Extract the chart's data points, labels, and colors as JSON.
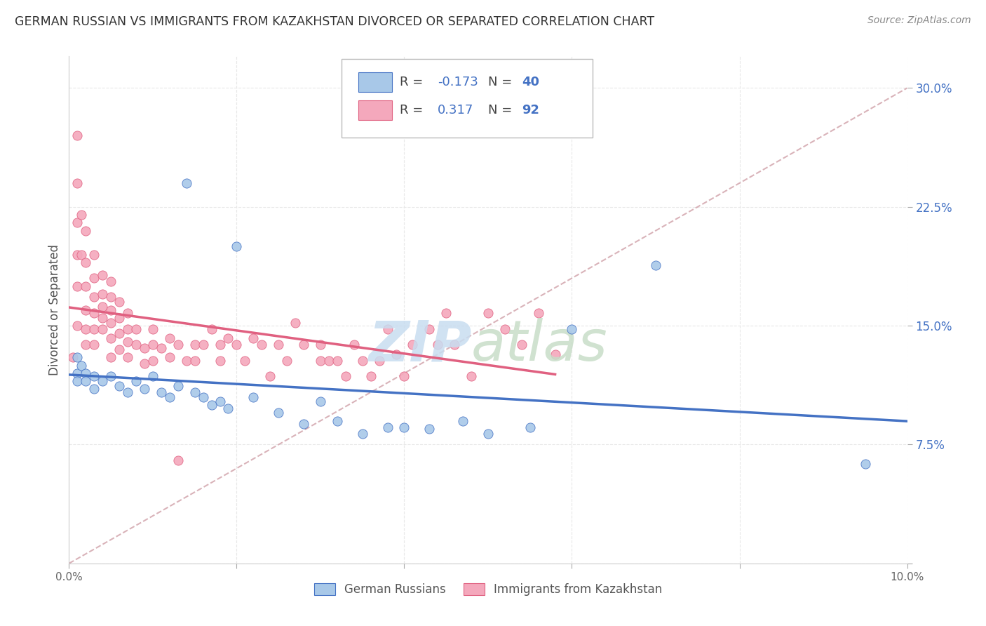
{
  "title": "GERMAN RUSSIAN VS IMMIGRANTS FROM KAZAKHSTAN DIVORCED OR SEPARATED CORRELATION CHART",
  "source": "Source: ZipAtlas.com",
  "ylabel": "Divorced or Separated",
  "xlim": [
    0.0,
    0.1
  ],
  "ylim": [
    0.0,
    0.32
  ],
  "xticks": [
    0.0,
    0.02,
    0.04,
    0.06,
    0.08,
    0.1
  ],
  "xtick_labels": [
    "0.0%",
    "",
    "",
    "",
    "",
    "10.0%"
  ],
  "yticks": [
    0.0,
    0.075,
    0.15,
    0.225,
    0.3
  ],
  "ytick_labels_right": [
    "",
    "7.5%",
    "15.0%",
    "22.5%",
    "30.0%"
  ],
  "blue_R": -0.173,
  "blue_N": 40,
  "pink_R": 0.317,
  "pink_N": 92,
  "blue_color": "#a8c8e8",
  "pink_color": "#f4a8bc",
  "blue_line_color": "#4472c4",
  "pink_line_color": "#e06080",
  "dashed_line_color": "#d0a0a8",
  "grid_color": "#e8e8e8",
  "blue_points_x": [
    0.001,
    0.001,
    0.001,
    0.0015,
    0.002,
    0.002,
    0.003,
    0.003,
    0.004,
    0.005,
    0.006,
    0.007,
    0.008,
    0.009,
    0.01,
    0.011,
    0.012,
    0.013,
    0.014,
    0.015,
    0.016,
    0.017,
    0.018,
    0.019,
    0.02,
    0.022,
    0.025,
    0.028,
    0.03,
    0.032,
    0.035,
    0.038,
    0.04,
    0.043,
    0.047,
    0.05,
    0.055,
    0.06,
    0.07,
    0.095
  ],
  "blue_points_y": [
    0.13,
    0.12,
    0.115,
    0.125,
    0.12,
    0.115,
    0.118,
    0.11,
    0.115,
    0.118,
    0.112,
    0.108,
    0.115,
    0.11,
    0.118,
    0.108,
    0.105,
    0.112,
    0.24,
    0.108,
    0.105,
    0.1,
    0.102,
    0.098,
    0.2,
    0.105,
    0.095,
    0.088,
    0.102,
    0.09,
    0.082,
    0.086,
    0.086,
    0.085,
    0.09,
    0.082,
    0.086,
    0.148,
    0.188,
    0.063
  ],
  "pink_points_x": [
    0.0005,
    0.001,
    0.001,
    0.001,
    0.001,
    0.001,
    0.001,
    0.0015,
    0.0015,
    0.002,
    0.002,
    0.002,
    0.002,
    0.002,
    0.002,
    0.003,
    0.003,
    0.003,
    0.003,
    0.003,
    0.003,
    0.004,
    0.004,
    0.004,
    0.004,
    0.004,
    0.005,
    0.005,
    0.005,
    0.005,
    0.005,
    0.005,
    0.006,
    0.006,
    0.006,
    0.006,
    0.007,
    0.007,
    0.007,
    0.007,
    0.008,
    0.008,
    0.009,
    0.009,
    0.01,
    0.01,
    0.01,
    0.011,
    0.012,
    0.012,
    0.013,
    0.013,
    0.014,
    0.015,
    0.015,
    0.016,
    0.017,
    0.018,
    0.018,
    0.019,
    0.02,
    0.021,
    0.022,
    0.023,
    0.024,
    0.025,
    0.026,
    0.027,
    0.028,
    0.03,
    0.03,
    0.031,
    0.032,
    0.033,
    0.034,
    0.035,
    0.036,
    0.037,
    0.038,
    0.039,
    0.04,
    0.041,
    0.043,
    0.044,
    0.045,
    0.046,
    0.048,
    0.05,
    0.052,
    0.054,
    0.056,
    0.058
  ],
  "pink_points_y": [
    0.13,
    0.27,
    0.24,
    0.215,
    0.195,
    0.175,
    0.15,
    0.22,
    0.195,
    0.21,
    0.19,
    0.175,
    0.16,
    0.148,
    0.138,
    0.195,
    0.18,
    0.168,
    0.158,
    0.148,
    0.138,
    0.182,
    0.17,
    0.162,
    0.155,
    0.148,
    0.178,
    0.168,
    0.16,
    0.152,
    0.142,
    0.13,
    0.165,
    0.155,
    0.145,
    0.135,
    0.158,
    0.148,
    0.14,
    0.13,
    0.148,
    0.138,
    0.136,
    0.126,
    0.148,
    0.138,
    0.128,
    0.136,
    0.142,
    0.13,
    0.138,
    0.065,
    0.128,
    0.138,
    0.128,
    0.138,
    0.148,
    0.138,
    0.128,
    0.142,
    0.138,
    0.128,
    0.142,
    0.138,
    0.118,
    0.138,
    0.128,
    0.152,
    0.138,
    0.138,
    0.128,
    0.128,
    0.128,
    0.118,
    0.138,
    0.128,
    0.118,
    0.128,
    0.148,
    0.132,
    0.118,
    0.138,
    0.148,
    0.138,
    0.158,
    0.138,
    0.118,
    0.158,
    0.148,
    0.138,
    0.158,
    0.132
  ]
}
